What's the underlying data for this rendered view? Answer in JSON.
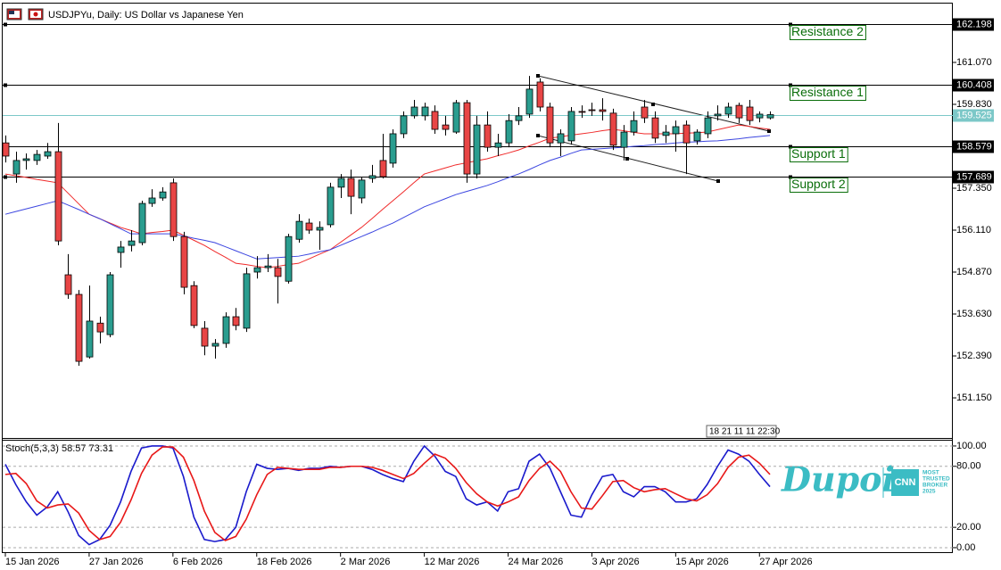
{
  "chart_data": [
    {
      "type": "candlestick",
      "title": "USDJPYu, Daily:  US Dollar vs Japanese Yen",
      "categories": [
        "15 Jan 2026",
        null,
        null,
        null,
        null,
        null,
        null,
        null,
        "27 Jan 2026",
        null,
        null,
        null,
        null,
        null,
        null,
        null,
        "6 Feb 2026",
        null,
        null,
        null,
        null,
        null,
        null,
        null,
        "18 Feb 2026",
        null,
        null,
        null,
        null,
        null,
        null,
        null,
        "2 Mar 2026",
        null,
        null,
        null,
        null,
        null,
        null,
        null,
        "12 Mar 2026",
        null,
        null,
        null,
        null,
        null,
        null,
        null,
        "24 Mar 2026",
        null,
        null,
        null,
        null,
        null,
        null,
        null,
        "3 Apr 2026",
        null,
        null,
        null,
        null,
        null,
        null,
        null,
        "15 Apr 2026",
        null,
        null,
        null,
        null,
        null,
        null,
        null,
        "27 Apr 2026",
        null
      ],
      "open": [
        158.69,
        157.77,
        158.17,
        158.17,
        158.3,
        158.43,
        154.79,
        154.21,
        152.36,
        153.36,
        153.02,
        155.45,
        155.66,
        155.74,
        156.9,
        157.06,
        157.51,
        155.92,
        154.47,
        153.21,
        152.68,
        152.76,
        153.55,
        153.21,
        154.87,
        155.0,
        155.0,
        154.6,
        155.84,
        156.32,
        156.11,
        156.27,
        157.38,
        157.64,
        157.06,
        157.64,
        158.17,
        158.09,
        158.96,
        159.49,
        159.49,
        159.62,
        159.22,
        159.01,
        159.88,
        157.77,
        159.22,
        158.56,
        158.69,
        159.35,
        159.54,
        160.49,
        159.75,
        158.69,
        158.75,
        159.62,
        159.67,
        159.67,
        159.57,
        158.56,
        159.01,
        159.75,
        159.43,
        158.91,
        158.96,
        159.22,
        158.75,
        158.96,
        159.49,
        159.54,
        159.8,
        159.75,
        159.43,
        159.43
      ],
      "high": [
        158.91,
        158.43,
        158.38,
        158.48,
        158.69,
        159.28,
        155.4,
        154.34,
        154.47,
        153.55,
        154.87,
        155.79,
        156.11,
        156.98,
        157.32,
        157.38,
        157.64,
        156.06,
        154.6,
        153.42,
        152.89,
        153.68,
        153.81,
        155.0,
        155.34,
        155.4,
        155.26,
        156.0,
        156.58,
        156.45,
        156.37,
        157.51,
        157.77,
        157.9,
        157.69,
        158.04,
        158.96,
        159.09,
        159.62,
        159.96,
        159.88,
        159.8,
        159.49,
        159.96,
        159.96,
        159.49,
        159.62,
        158.96,
        159.54,
        159.75,
        160.67,
        160.6,
        159.88,
        159.09,
        159.75,
        159.8,
        159.88,
        160.01,
        159.7,
        159.22,
        159.62,
        159.96,
        159.62,
        159.22,
        159.35,
        159.35,
        159.09,
        159.62,
        159.8,
        159.88,
        159.88,
        159.96,
        159.62,
        159.62
      ],
      "low": [
        158.11,
        157.51,
        157.9,
        158.04,
        158.22,
        155.66,
        154.08,
        152.1,
        152.31,
        152.76,
        152.94,
        155.0,
        155.48,
        155.66,
        156.8,
        156.98,
        155.79,
        154.21,
        153.21,
        152.41,
        152.31,
        152.63,
        153.15,
        153.1,
        154.68,
        154.87,
        153.94,
        154.53,
        155.74,
        156.0,
        155.53,
        156.19,
        157.06,
        156.58,
        156.9,
        157.51,
        157.64,
        157.96,
        158.83,
        159.41,
        159.35,
        158.96,
        158.91,
        158.96,
        157.51,
        157.64,
        158.43,
        158.3,
        158.56,
        159.22,
        159.43,
        159.62,
        158.56,
        158.3,
        158.64,
        159.43,
        159.49,
        159.35,
        158.48,
        158.17,
        158.91,
        159.28,
        158.69,
        158.69,
        158.43,
        157.77,
        158.64,
        158.83,
        159.35,
        159.43,
        159.28,
        159.22,
        159.3,
        159.38
      ],
      "close": [
        158.3,
        158.17,
        158.22,
        158.35,
        158.43,
        155.79,
        154.21,
        152.23,
        153.42,
        153.1,
        154.79,
        155.61,
        155.79,
        156.9,
        157.06,
        157.24,
        155.92,
        154.42,
        153.29,
        152.68,
        152.76,
        153.55,
        153.29,
        154.82,
        155.0,
        155.05,
        154.74,
        155.92,
        156.37,
        156.11,
        156.19,
        157.38,
        157.64,
        157.11,
        157.59,
        157.72,
        157.69,
        158.96,
        159.49,
        159.75,
        159.75,
        159.09,
        159.09,
        159.88,
        157.77,
        159.22,
        158.56,
        158.69,
        159.35,
        159.49,
        160.28,
        159.75,
        158.69,
        158.96,
        159.62,
        159.6,
        159.66,
        159.62,
        158.62,
        159.01,
        159.35,
        159.43,
        158.83,
        159.01,
        159.17,
        158.69,
        159.01,
        159.43,
        159.54,
        159.75,
        159.43,
        159.35,
        159.54,
        159.525
      ],
      "up_color": "#2a9d8f",
      "down_color": "#e84545",
      "series": [
        {
          "color": "#f02a2a",
          "values": [
            157.77,
            157.72,
            157.67,
            157.61,
            157.56,
            157.51,
            157.2,
            156.89,
            156.58,
            156.45,
            156.32,
            156.19,
            156.1,
            156.0,
            156.04,
            156.07,
            156.11,
            155.96,
            155.81,
            155.66,
            155.48,
            155.31,
            155.13,
            155.09,
            155.04,
            155.0,
            155.04,
            155.09,
            155.13,
            155.26,
            155.4,
            155.53,
            155.75,
            155.97,
            156.19,
            156.45,
            156.72,
            156.98,
            157.24,
            157.51,
            157.77,
            157.86,
            157.95,
            158.04,
            158.1,
            158.16,
            158.22,
            158.31,
            158.39,
            158.48,
            158.6,
            158.71,
            158.83,
            158.87,
            158.92,
            158.96,
            159.0,
            159.05,
            159.09,
            159.05,
            159.0,
            158.96,
            158.96,
            158.96,
            158.96,
            158.98,
            158.99,
            159.01,
            159.08,
            159.15,
            159.22,
            159.18,
            159.13,
            159.09
          ]
        },
        {
          "color": "#3c46e0",
          "values": [
            156.58,
            156.66,
            156.74,
            156.82,
            156.9,
            156.98,
            156.85,
            156.72,
            156.58,
            156.45,
            156.3,
            156.15,
            156.0,
            156.0,
            156.0,
            156.0,
            156.0,
            155.94,
            155.87,
            155.81,
            155.74,
            155.62,
            155.5,
            155.38,
            155.26,
            155.28,
            155.3,
            155.32,
            155.34,
            155.4,
            155.47,
            155.53,
            155.66,
            155.79,
            155.92,
            156.05,
            156.19,
            156.32,
            156.48,
            156.64,
            156.8,
            156.92,
            157.04,
            157.16,
            157.25,
            157.34,
            157.43,
            157.54,
            157.66,
            157.77,
            157.9,
            158.04,
            158.17,
            158.27,
            158.38,
            158.48,
            158.5,
            158.52,
            158.54,
            158.56,
            158.59,
            158.61,
            158.64,
            158.66,
            158.69,
            158.71,
            158.72,
            158.74,
            158.75,
            158.78,
            158.81,
            158.85,
            158.88,
            158.91
          ]
        }
      ],
      "levels": [
        {
          "name": "Resistance 2",
          "value": 162.198
        },
        {
          "name": "Resistance 1",
          "value": 160.408
        },
        {
          "name": "Support 1",
          "value": 158.579
        },
        {
          "name": "Support 2",
          "value": 157.689
        }
      ],
      "current_price": 159.525,
      "current_color": "#7cc8c8",
      "ylim": [
        149.99,
        162.52
      ],
      "yticks": [
        {
          "value": 151.15,
          "label": "151.150"
        },
        {
          "value": 152.39,
          "label": "152.390"
        },
        {
          "value": 153.63,
          "label": "153.630"
        },
        {
          "value": 154.87,
          "label": "154.870"
        },
        {
          "value": 156.11,
          "label": "156.110"
        },
        {
          "value": 157.35,
          "label": "157.350"
        },
        {
          "value": 159.83,
          "label": "159.830"
        },
        {
          "value": 161.07,
          "label": "161.070"
        }
      ],
      "countdown": "18 21 11 11 22:30"
    },
    {
      "type": "line",
      "title": "Stoch(5,3,3) 58.57 73.31",
      "series": [
        {
          "color": "#1a1acc",
          "values": [
            82,
            62,
            45,
            32,
            40,
            55,
            35,
            12,
            3,
            8,
            22,
            45,
            75,
            98,
            100,
            100,
            98,
            70,
            30,
            8,
            6,
            8,
            20,
            55,
            82,
            78,
            77,
            78,
            76,
            78,
            78,
            80,
            79,
            80,
            80,
            77,
            72,
            68,
            65,
            85,
            100,
            90,
            75,
            70,
            48,
            42,
            45,
            36,
            55,
            58,
            85,
            92,
            78,
            55,
            32,
            30,
            52,
            70,
            72,
            55,
            50,
            60,
            60,
            55,
            45,
            45,
            48,
            62,
            80,
            96,
            92,
            85,
            72,
            60
          ]
        },
        {
          "color": "#e81818",
          "values": [
            72,
            73,
            63,
            46,
            39,
            42,
            43,
            34,
            17,
            8,
            11,
            25,
            47,
            73,
            91,
            99,
            99,
            89,
            66,
            36,
            15,
            7,
            11,
            28,
            52,
            72,
            79,
            78,
            77,
            77,
            77,
            79,
            79,
            80,
            80,
            79,
            76,
            72,
            68,
            73,
            83,
            92,
            88,
            78,
            64,
            53,
            45,
            41,
            45,
            50,
            66,
            78,
            85,
            75,
            55,
            39,
            38,
            51,
            65,
            66,
            59,
            55,
            57,
            58,
            53,
            48,
            46,
            52,
            63,
            79,
            89,
            91,
            83,
            72
          ]
        }
      ],
      "ylim": [
        -5.3,
        106.1
      ],
      "yticks": [
        {
          "value": 100,
          "label": "100.00"
        },
        {
          "value": 80,
          "label": "80.00"
        },
        {
          "value": 20,
          "label": "20.00"
        },
        {
          "value": 0,
          "label": "0.00"
        }
      ],
      "grid": true
    }
  ],
  "logo": {
    "brand": "Dupoin",
    "badge": "CNN",
    "lines": [
      "MOST",
      "TRUSTED",
      "BROKER",
      "2025"
    ]
  }
}
